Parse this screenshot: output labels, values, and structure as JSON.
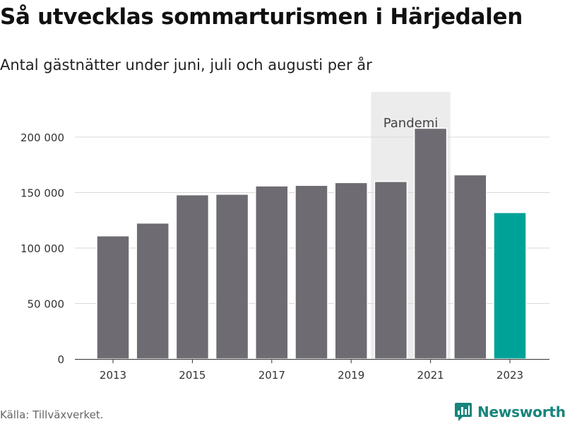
{
  "title": "Så utvecklas sommarturismen i Härjedalen",
  "subtitle": "Antal gästnätter under juni, juli och augusti per år",
  "source": "Källa: Tillväxverket.",
  "brand": "Newsworthy",
  "colors": {
    "bar": "#6e6c72",
    "highlight": "#00a298",
    "grid": "#d9d9d9",
    "band": "#ececec",
    "brand": "#17857b"
  },
  "chart_data": {
    "type": "bar",
    "categories": [
      "2013",
      "2014",
      "2015",
      "2016",
      "2017",
      "2018",
      "2019",
      "2020",
      "2021",
      "2022",
      "2023"
    ],
    "values": [
      111000,
      122500,
      148000,
      148500,
      156000,
      156500,
      159000,
      160000,
      208000,
      166000,
      132000
    ],
    "highlight_category": "2023",
    "ylim": [
      0,
      200000
    ],
    "yticks": [
      0,
      50000,
      100000,
      150000,
      200000
    ],
    "ytick_labels": [
      "0",
      "50 000",
      "100 000",
      "150 000",
      "200 000"
    ],
    "xtick_labels": [
      "2013",
      "2015",
      "2017",
      "2019",
      "2021",
      "2023"
    ],
    "annotation": {
      "label": "Pandemi",
      "from": "2020",
      "to": "2021"
    },
    "grid": true,
    "legend": "none"
  }
}
